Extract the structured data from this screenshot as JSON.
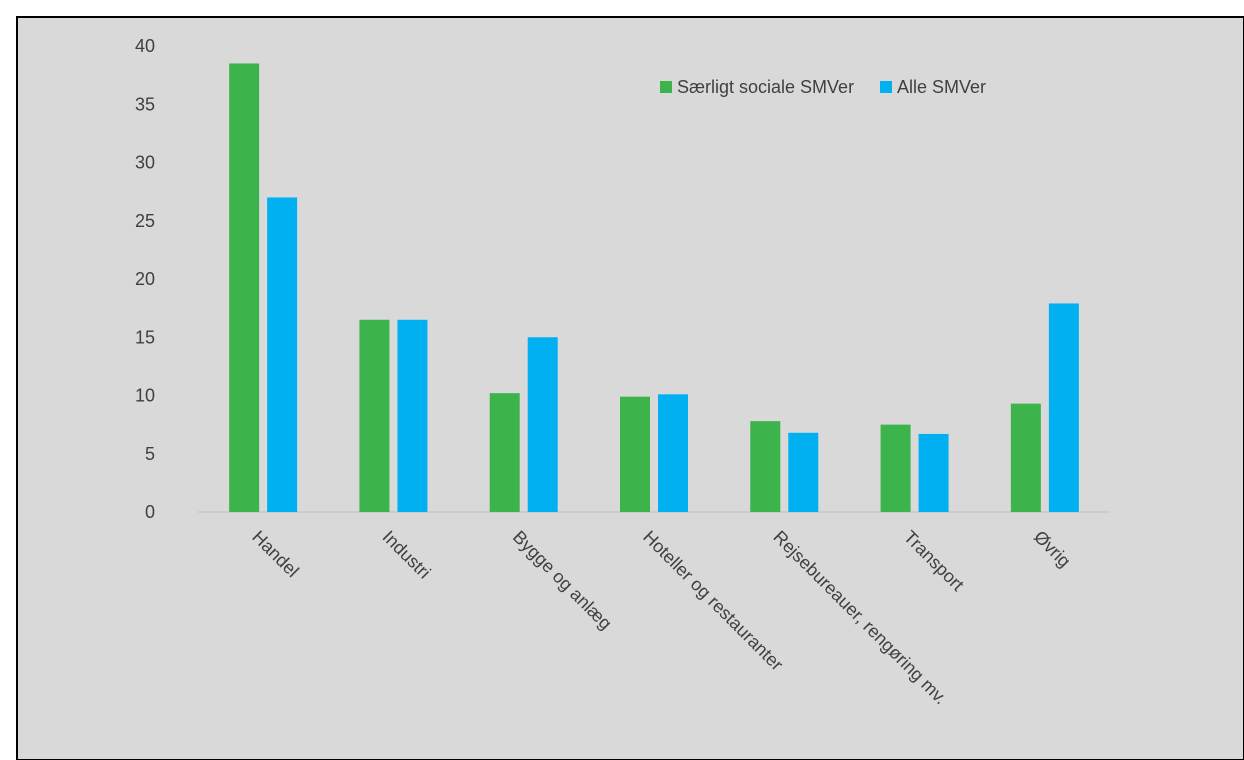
{
  "chart_data": {
    "type": "bar",
    "categories": [
      "Handel",
      "Industri",
      "Bygge og anlæg",
      "Hoteller og restauranter",
      "Rejsebureauer, rengøring mv.",
      "Transport",
      "Øvrig"
    ],
    "series": [
      {
        "name": "Særligt sociale SMVer",
        "color": "#3cb44b",
        "values": [
          38.5,
          16.5,
          10.2,
          9.9,
          7.8,
          7.5,
          9.3
        ]
      },
      {
        "name": "Alle SMVer",
        "color": "#00b0f0",
        "values": [
          27.0,
          16.5,
          15.0,
          10.1,
          6.8,
          6.7,
          17.9
        ]
      }
    ],
    "y_ticks": [
      0,
      5,
      10,
      15,
      20,
      25,
      30,
      35,
      40
    ],
    "ylim": [
      0,
      40
    ],
    "grid": false,
    "legend_position": "top-right",
    "background": "#d9d9d9"
  }
}
